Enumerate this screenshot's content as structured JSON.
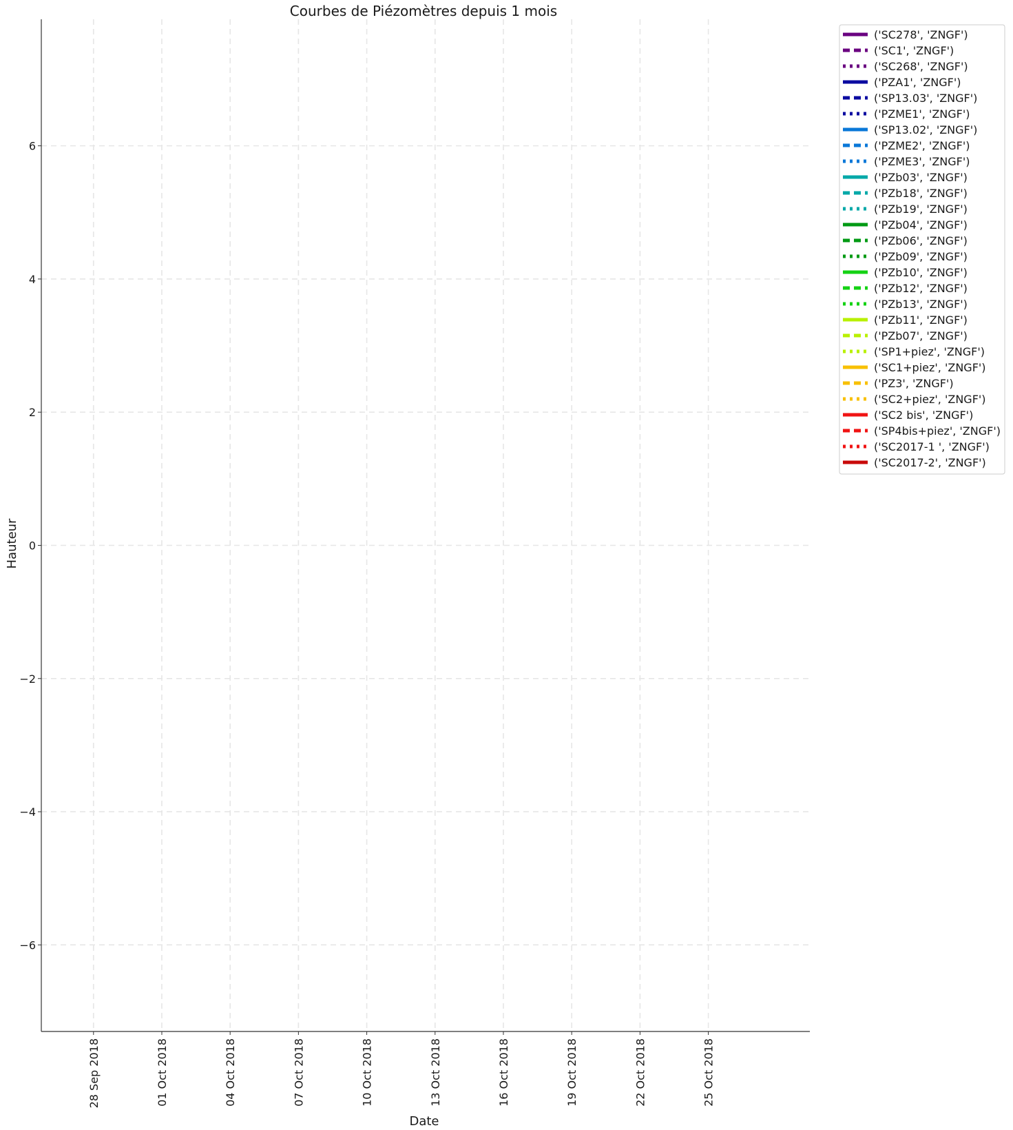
{
  "chart_data": {
    "type": "line",
    "title": "Courbes de Piézomètres depuis 1 mois",
    "xlabel": "Date",
    "ylabel": "Hauteur",
    "x_axis_type": "date",
    "xlim": [
      "2018-09-25T17:00",
      "2018-10-29T11:00"
    ],
    "ylim": [
      -7.3,
      7.9
    ],
    "x_ticks": [
      {
        "value": "2018-09-28",
        "label": "28 Sep 2018"
      },
      {
        "value": "2018-10-01",
        "label": "01 Oct 2018"
      },
      {
        "value": "2018-10-04",
        "label": "04 Oct 2018"
      },
      {
        "value": "2018-10-07",
        "label": "07 Oct 2018"
      },
      {
        "value": "2018-10-10",
        "label": "10 Oct 2018"
      },
      {
        "value": "2018-10-13",
        "label": "13 Oct 2018"
      },
      {
        "value": "2018-10-16",
        "label": "16 Oct 2018"
      },
      {
        "value": "2018-10-19",
        "label": "19 Oct 2018"
      },
      {
        "value": "2018-10-22",
        "label": "22 Oct 2018"
      },
      {
        "value": "2018-10-25",
        "label": "25 Oct 2018"
      }
    ],
    "y_ticks": [
      {
        "value": -6,
        "label": "−6"
      },
      {
        "value": -4,
        "label": "−4"
      },
      {
        "value": -2,
        "label": "−2"
      },
      {
        "value": 0,
        "label": "0"
      },
      {
        "value": 2,
        "label": "2"
      },
      {
        "value": 4,
        "label": "4"
      },
      {
        "value": 6,
        "label": "6"
      }
    ],
    "grid": true,
    "grid_style": "dashed",
    "legend_position": "outside-top-right",
    "series": [
      {
        "name": "('SC278', 'ZNGF')",
        "color": "#6a0080",
        "dash": "solid",
        "values": []
      },
      {
        "name": "('SC1', 'ZNGF')",
        "color": "#6a0080",
        "dash": "dashed",
        "values": []
      },
      {
        "name": "('SC268', 'ZNGF')",
        "color": "#6a0080",
        "dash": "dotted",
        "values": []
      },
      {
        "name": "('PZA1', 'ZNGF')",
        "color": "#0a0aa0",
        "dash": "solid",
        "values": []
      },
      {
        "name": "('SP13.03', 'ZNGF')",
        "color": "#0a0aa0",
        "dash": "dashed",
        "values": []
      },
      {
        "name": "('PZME1', 'ZNGF')",
        "color": "#0a0aa0",
        "dash": "dotted",
        "values": []
      },
      {
        "name": "('SP13.02', 'ZNGF')",
        "color": "#0a78d8",
        "dash": "solid",
        "values": []
      },
      {
        "name": "('PZME2', 'ZNGF')",
        "color": "#0a78d8",
        "dash": "dashed",
        "values": []
      },
      {
        "name": "('PZME3', 'ZNGF')",
        "color": "#0a78d8",
        "dash": "dotted",
        "values": []
      },
      {
        "name": "('PZb03', 'ZNGF')",
        "color": "#00a8a8",
        "dash": "solid",
        "values": []
      },
      {
        "name": "('PZb18', 'ZNGF')",
        "color": "#00a8a8",
        "dash": "dashed",
        "values": []
      },
      {
        "name": "('PZb19', 'ZNGF')",
        "color": "#00a8a8",
        "dash": "dotted",
        "values": []
      },
      {
        "name": "('PZb04', 'ZNGF')",
        "color": "#009a14",
        "dash": "solid",
        "values": []
      },
      {
        "name": "('PZb06', 'ZNGF')",
        "color": "#009a14",
        "dash": "dashed",
        "values": []
      },
      {
        "name": "('PZb09', 'ZNGF')",
        "color": "#009a14",
        "dash": "dotted",
        "values": []
      },
      {
        "name": "('PZb10', 'ZNGF')",
        "color": "#14d214",
        "dash": "solid",
        "values": []
      },
      {
        "name": "('PZb12', 'ZNGF')",
        "color": "#14d214",
        "dash": "dashed",
        "values": []
      },
      {
        "name": "('PZb13', 'ZNGF')",
        "color": "#14d214",
        "dash": "dotted",
        "values": []
      },
      {
        "name": "('PZb11', 'ZNGF')",
        "color": "#b8f000",
        "dash": "solid",
        "values": []
      },
      {
        "name": "('PZb07', 'ZNGF')",
        "color": "#b8f000",
        "dash": "dashed",
        "values": []
      },
      {
        "name": "('SP1+piez', 'ZNGF')",
        "color": "#b8f000",
        "dash": "dotted",
        "values": []
      },
      {
        "name": "('SC1+piez', 'ZNGF')",
        "color": "#f8c000",
        "dash": "solid",
        "values": []
      },
      {
        "name": "('PZ3', 'ZNGF')",
        "color": "#f8c000",
        "dash": "dashed",
        "values": []
      },
      {
        "name": "('SC2+piez', 'ZNGF')",
        "color": "#f8c000",
        "dash": "dotted",
        "values": []
      },
      {
        "name": "('SC2 bis', 'ZNGF')",
        "color": "#f01414",
        "dash": "solid",
        "values": []
      },
      {
        "name": "('SP4bis+piez', 'ZNGF')",
        "color": "#f01414",
        "dash": "dashed",
        "values": []
      },
      {
        "name": "('SC2017-1 ', 'ZNGF')",
        "color": "#f01414",
        "dash": "dotted",
        "values": []
      },
      {
        "name": "('SC2017-2', 'ZNGF')",
        "color": "#c80a0a",
        "dash": "solid",
        "values": []
      }
    ]
  }
}
